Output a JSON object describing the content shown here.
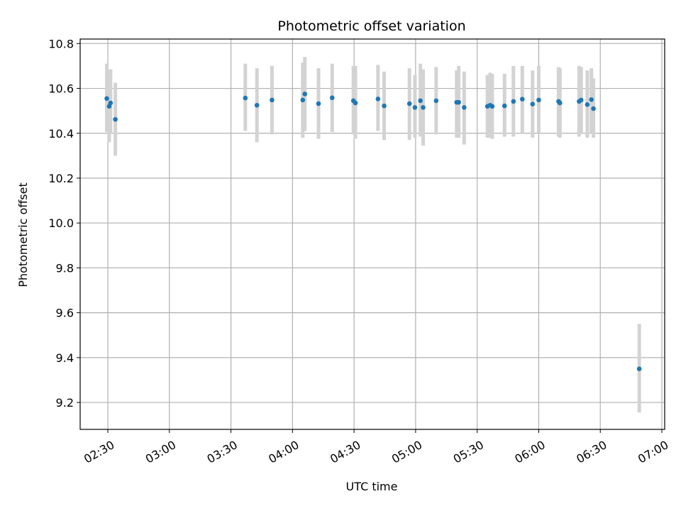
{
  "chart_data": {
    "type": "scatter",
    "title": "Photometric offset variation",
    "xlabel": "UTC time",
    "ylabel": "Photometric offset",
    "xlim": [
      "02:30",
      "07:00"
    ],
    "ylim": [
      9.08,
      10.82
    ],
    "x_ticks": [
      "02:30",
      "03:00",
      "03:30",
      "04:00",
      "04:30",
      "05:00",
      "05:30",
      "06:00",
      "06:30",
      "07:00"
    ],
    "y_ticks": [
      9.2,
      9.4,
      9.6,
      9.8,
      10.0,
      10.2,
      10.4,
      10.6,
      10.8
    ],
    "y_tick_labels": [
      "9.2",
      "9.4",
      "9.6",
      "9.8",
      "10.0",
      "10.2",
      "10.4",
      "10.6",
      "10.8"
    ],
    "grid": true,
    "marker_color": "#1f77b4",
    "errorbar_color": "#d3d3d3",
    "points": [
      {
        "t": "02:29:30",
        "y": 10.555,
        "lo": 10.405,
        "hi": 10.71
      },
      {
        "t": "02:30:40",
        "y": 10.52,
        "lo": 10.36,
        "hi": 10.68
      },
      {
        "t": "02:31:20",
        "y": 10.535,
        "lo": 10.4,
        "hi": 10.685
      },
      {
        "t": "02:33:40",
        "y": 10.462,
        "lo": 10.3,
        "hi": 10.625
      },
      {
        "t": "03:37:00",
        "y": 10.557,
        "lo": 10.41,
        "hi": 10.71
      },
      {
        "t": "03:42:40",
        "y": 10.525,
        "lo": 10.36,
        "hi": 10.69
      },
      {
        "t": "03:50:00",
        "y": 10.548,
        "lo": 10.395,
        "hi": 10.7
      },
      {
        "t": "04:05:00",
        "y": 10.548,
        "lo": 10.38,
        "hi": 10.715
      },
      {
        "t": "04:06:00",
        "y": 10.575,
        "lo": 10.41,
        "hi": 10.74
      },
      {
        "t": "04:12:40",
        "y": 10.532,
        "lo": 10.375,
        "hi": 10.69
      },
      {
        "t": "04:19:20",
        "y": 10.558,
        "lo": 10.405,
        "hi": 10.71
      },
      {
        "t": "04:29:40",
        "y": 10.545,
        "lo": 10.395,
        "hi": 10.7
      },
      {
        "t": "04:30:40",
        "y": 10.535,
        "lo": 10.375,
        "hi": 10.7
      },
      {
        "t": "04:41:40",
        "y": 10.553,
        "lo": 10.41,
        "hi": 10.705
      },
      {
        "t": "04:44:40",
        "y": 10.522,
        "lo": 10.37,
        "hi": 10.675
      },
      {
        "t": "04:57:00",
        "y": 10.532,
        "lo": 10.37,
        "hi": 10.69
      },
      {
        "t": "04:59:40",
        "y": 10.515,
        "lo": 10.38,
        "hi": 10.66
      },
      {
        "t": "05:02:20",
        "y": 10.545,
        "lo": 10.385,
        "hi": 10.71
      },
      {
        "t": "05:03:40",
        "y": 10.515,
        "lo": 10.345,
        "hi": 10.685
      },
      {
        "t": "05:10:00",
        "y": 10.545,
        "lo": 10.395,
        "hi": 10.695
      },
      {
        "t": "05:20:00",
        "y": 10.538,
        "lo": 10.38,
        "hi": 10.68
      },
      {
        "t": "05:21:00",
        "y": 10.538,
        "lo": 10.38,
        "hi": 10.7
      },
      {
        "t": "05:23:40",
        "y": 10.515,
        "lo": 10.35,
        "hi": 10.675
      },
      {
        "t": "05:35:00",
        "y": 10.52,
        "lo": 10.38,
        "hi": 10.66
      },
      {
        "t": "05:36:20",
        "y": 10.525,
        "lo": 10.38,
        "hi": 10.67
      },
      {
        "t": "05:37:20",
        "y": 10.52,
        "lo": 10.375,
        "hi": 10.665
      },
      {
        "t": "05:43:20",
        "y": 10.522,
        "lo": 10.385,
        "hi": 10.665
      },
      {
        "t": "05:47:40",
        "y": 10.542,
        "lo": 10.385,
        "hi": 10.7
      },
      {
        "t": "05:52:00",
        "y": 10.552,
        "lo": 10.4,
        "hi": 10.7
      },
      {
        "t": "05:57:00",
        "y": 10.53,
        "lo": 10.38,
        "hi": 10.68
      },
      {
        "t": "06:00:00",
        "y": 10.548,
        "lo": 10.4,
        "hi": 10.7
      },
      {
        "t": "06:09:40",
        "y": 10.542,
        "lo": 10.385,
        "hi": 10.695
      },
      {
        "t": "06:10:20",
        "y": 10.535,
        "lo": 10.38,
        "hi": 10.69
      },
      {
        "t": "06:19:40",
        "y": 10.542,
        "lo": 10.385,
        "hi": 10.7
      },
      {
        "t": "06:20:40",
        "y": 10.548,
        "lo": 10.4,
        "hi": 10.695
      },
      {
        "t": "06:23:40",
        "y": 10.528,
        "lo": 10.38,
        "hi": 10.68
      },
      {
        "t": "06:25:40",
        "y": 10.55,
        "lo": 10.4,
        "hi": 10.69
      },
      {
        "t": "06:26:40",
        "y": 10.51,
        "lo": 10.38,
        "hi": 10.645
      },
      {
        "t": "06:49:00",
        "y": 9.35,
        "lo": 9.155,
        "hi": 9.55
      }
    ]
  }
}
